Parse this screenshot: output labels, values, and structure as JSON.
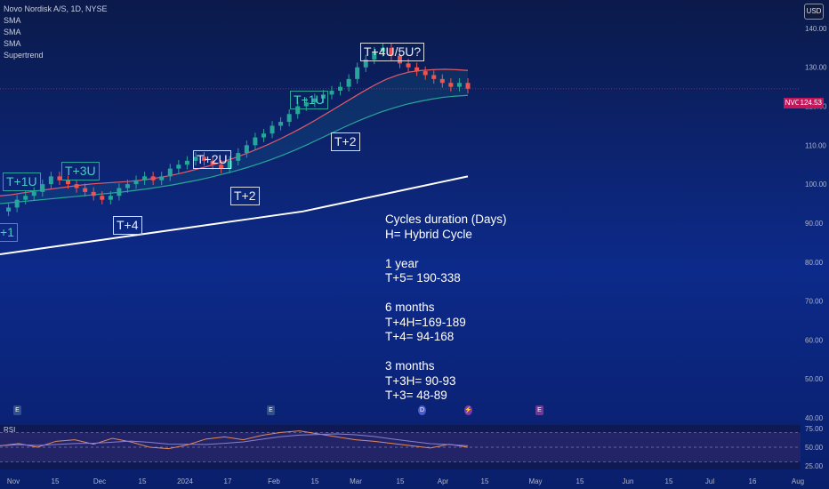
{
  "legend": {
    "symbol": "Novo Nordisk A/S, 1D, NYSE",
    "indicators": [
      "SMA",
      "SMA",
      "SMA",
      "Supertrend"
    ]
  },
  "currency_button": "USD",
  "ticker_tag": "NVO",
  "ticker_price": "124.53",
  "notes": [
    "Cycles duration (Days)",
    "H= Hybrid Cycle",
    "",
    "1 year",
    "T+5= 190-338",
    "",
    "6 months",
    "T+4H=169-189",
    "T+4= 94-168",
    "",
    "3 months",
    "T+3H= 90-93",
    "T+3= 48-89"
  ],
  "cycle_labels": [
    {
      "text": "T+1U",
      "kind": "up"
    },
    {
      "text": "T+3U",
      "kind": "up"
    },
    {
      "text": "T+4",
      "kind": "down"
    },
    {
      "text": "T+2U",
      "kind": "down"
    },
    {
      "text": "T+2",
      "kind": "down"
    },
    {
      "text": "T+1U",
      "kind": "up"
    },
    {
      "text": "T+2",
      "kind": "down"
    },
    {
      "text": "T+4U/5U?",
      "kind": "down"
    },
    {
      "text": "+1",
      "kind": "up"
    }
  ],
  "events": [
    {
      "label": "E",
      "color": "#2f4f8f"
    },
    {
      "label": "E",
      "color": "#2f4f8f"
    },
    {
      "label": "D",
      "color": "#4a5bd0"
    },
    {
      "label": "⚡",
      "color": "#7a3cb0"
    },
    {
      "label": "E",
      "color": "#6a3a9a"
    }
  ],
  "rsi_label": "RSI",
  "colors": {
    "sma_fast": "#e05a6a",
    "sma_mid": "#26a69a",
    "sma_slow": "#ffffff",
    "up_candle": "#26a69a",
    "down_candle": "#ef5350",
    "rsi_line": "#e0895a",
    "rsi_sma": "#8a7fd0"
  },
  "chart_data": {
    "type": "candlestick",
    "price_axis": {
      "ylim": [
        40,
        145
      ],
      "ticks": [
        "140.00",
        "130.00",
        "120.00",
        "110.00",
        "100.00",
        "90.00",
        "80.00",
        "70.00",
        "60.00",
        "50.00",
        "40.00"
      ]
    },
    "rsi_axis": {
      "ylim": [
        20,
        80
      ],
      "ticks": [
        "75.00",
        "50.00",
        "25.00"
      ]
    },
    "x_ticks": [
      "Nov",
      "15",
      "Dec",
      "15",
      "2024",
      "17",
      "Feb",
      "15",
      "Mar",
      "15",
      "Apr",
      "15",
      "May",
      "15",
      "Jun",
      "15",
      "Jul",
      "16",
      "Aug"
    ],
    "close_series": [
      93,
      94,
      96,
      97,
      98,
      100,
      102,
      101,
      100,
      99,
      98,
      97,
      96,
      97,
      99,
      100,
      101,
      102,
      101,
      102,
      104,
      105,
      106,
      107,
      106,
      105,
      104,
      106,
      108,
      110,
      112,
      113,
      115,
      116,
      118,
      120,
      121,
      122,
      123,
      124,
      125,
      127,
      130,
      132,
      134,
      135,
      133,
      131,
      130,
      129,
      128,
      127,
      126,
      125,
      126,
      124.5
    ],
    "sma_fast": [
      97,
      97.3,
      97.8,
      98.2,
      98.6,
      99,
      99.4,
      99.8,
      100.1,
      100.3,
      100.5,
      100.7,
      101,
      101.4,
      101.9,
      102.5,
      103.2,
      104,
      104.8,
      105.7,
      106.7,
      107.8,
      109,
      110.3,
      111.7,
      113.2,
      114.8,
      116.5,
      118.3,
      120.1,
      121.9,
      123.7,
      125.4,
      126.9,
      128,
      128.8,
      129.2,
      129.4,
      129.5,
      129.4,
      129.2
    ],
    "sma_mid": [
      95,
      95.3,
      95.6,
      95.9,
      96.2,
      96.5,
      96.8,
      97.1,
      97.4,
      97.7,
      98,
      98.4,
      98.8,
      99.3,
      99.8,
      100.4,
      101,
      101.7,
      102.5,
      103.3,
      104.2,
      105.2,
      106.3,
      107.5,
      108.8,
      110.2,
      111.7,
      113.2,
      114.7,
      116.1,
      117.4,
      118.6,
      119.6,
      120.5,
      121.2,
      121.8,
      122.3,
      122.6,
      122.8
    ],
    "sma_slow": [
      82,
      83,
      84,
      85,
      86,
      87,
      88,
      89,
      90,
      91,
      92,
      93,
      94.5,
      96,
      97.5,
      99,
      100.5,
      102
    ],
    "rsi": [
      52,
      55,
      50,
      58,
      60,
      54,
      62,
      57,
      50,
      48,
      53,
      61,
      64,
      60,
      66,
      70,
      72,
      68,
      64,
      60,
      58,
      55,
      52,
      49,
      54,
      50
    ]
  }
}
